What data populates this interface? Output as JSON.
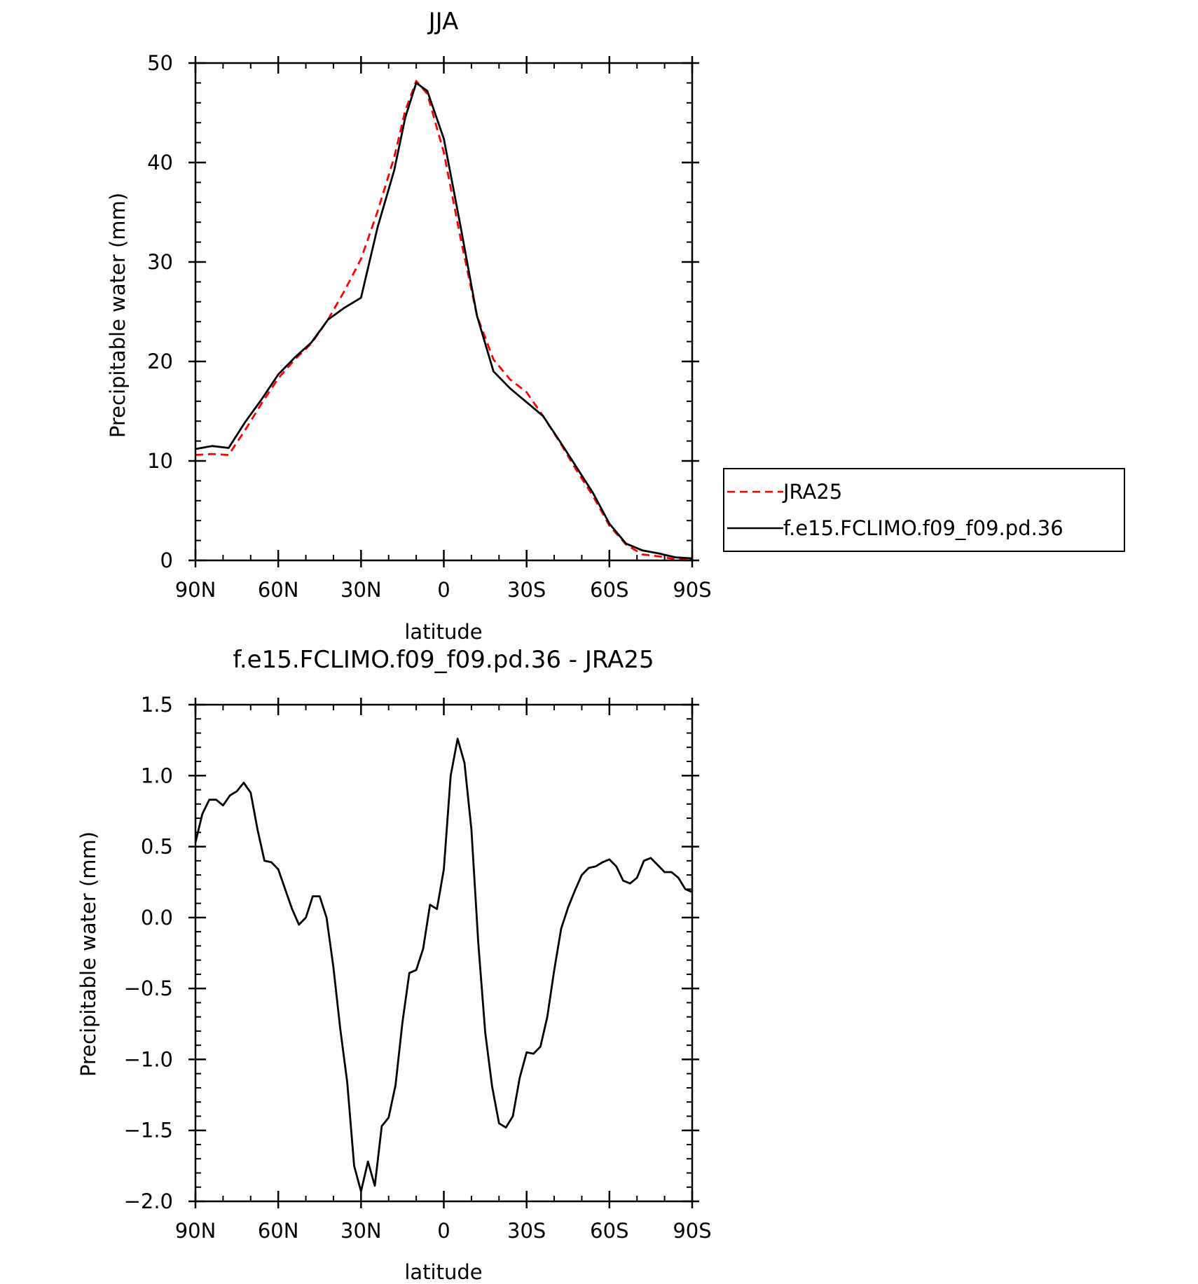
{
  "chart_data": [
    {
      "type": "line",
      "title": "JJA",
      "xlabel": "latitude",
      "ylabel": "Precipitable water (mm)",
      "xlim": [
        90,
        -90
      ],
      "ylim": [
        0,
        50
      ],
      "xticks": [
        90,
        60,
        30,
        0,
        -30,
        -60,
        -90
      ],
      "xtick_labels": [
        "90N",
        "60N",
        "30N",
        "0",
        "30S",
        "60S",
        "90S"
      ],
      "yticks": [
        0,
        10,
        20,
        30,
        40,
        50
      ],
      "ytick_labels": [
        "0",
        "10",
        "20",
        "30",
        "40",
        "50"
      ],
      "grid": false,
      "legend": "right, outside",
      "series": [
        {
          "name": "JRA25",
          "color": "#ff0000",
          "dash": "dashed",
          "x": [
            90,
            84,
            78,
            72,
            66,
            60,
            54,
            48,
            42,
            36,
            30,
            24,
            18,
            14,
            10,
            6,
            0,
            -6,
            -12,
            -18,
            -24,
            -30,
            -36,
            -42,
            -48,
            -54,
            -60,
            -66,
            -72,
            -78,
            -84,
            -90
          ],
          "y": [
            10.6,
            10.7,
            10.6,
            13.1,
            15.8,
            18.3,
            20.2,
            21.8,
            24.2,
            27.1,
            30.3,
            35.1,
            40.5,
            45.2,
            48.2,
            46.9,
            41.0,
            32.5,
            24.6,
            20.2,
            18.2,
            16.9,
            14.5,
            11.9,
            9.1,
            6.5,
            3.5,
            1.6,
            0.6,
            0.4,
            0.1,
            0.1
          ]
        },
        {
          "name": "f.e15.FCLIMO.f09_f09.pd.36",
          "color": "#000000",
          "dash": "solid",
          "x": [
            90,
            84,
            78,
            72,
            66,
            60,
            54,
            48,
            42,
            36,
            30,
            24,
            18,
            14,
            10,
            6,
            0,
            -6,
            -12,
            -18,
            -24,
            -30,
            -36,
            -42,
            -48,
            -54,
            -60,
            -66,
            -72,
            -78,
            -84,
            -90
          ],
          "y": [
            11.2,
            11.5,
            11.3,
            13.9,
            16.2,
            18.7,
            20.4,
            21.9,
            24.2,
            25.4,
            26.4,
            33.5,
            39.2,
            44.5,
            48.0,
            47.2,
            42.4,
            33.7,
            24.6,
            19.0,
            17.3,
            15.9,
            14.5,
            12.0,
            9.4,
            6.8,
            3.7,
            1.7,
            1.0,
            0.7,
            0.3,
            0.2
          ]
        }
      ]
    },
    {
      "type": "line",
      "title": "f.e15.FCLIMO.f09_f09.pd.36 - JRA25",
      "xlabel": "latitude",
      "ylabel": "Precipitable water (mm)",
      "xlim": [
        90,
        -90
      ],
      "ylim": [
        -2.0,
        1.5
      ],
      "xticks": [
        90,
        60,
        30,
        0,
        -30,
        -60,
        -90
      ],
      "xtick_labels": [
        "90N",
        "60N",
        "30N",
        "0",
        "30S",
        "60S",
        "90S"
      ],
      "yticks": [
        -2.0,
        -1.5,
        -1.0,
        -0.5,
        0.0,
        0.5,
        1.0,
        1.5
      ],
      "ytick_labels": [
        "−2.0",
        "−1.5",
        "−1.0",
        "−0.5",
        "0.0",
        "0.5",
        "1.0",
        "1.5"
      ],
      "grid": false,
      "series": [
        {
          "color": "#000000",
          "dash": "solid",
          "x": [
            90,
            87.5,
            85,
            82.5,
            80,
            77.5,
            75,
            72.5,
            70,
            67.5,
            65,
            62.5,
            60,
            57.5,
            55,
            52.5,
            50,
            47.5,
            45,
            42.5,
            40,
            37.5,
            35,
            32.5,
            30,
            27.5,
            25,
            22.5,
            20,
            17.5,
            15,
            12.5,
            10,
            7.5,
            5,
            2.5,
            0,
            -2.5,
            -5,
            -7.5,
            -10,
            -12.5,
            -15,
            -17.5,
            -20,
            -22.5,
            -25,
            -27.5,
            -30,
            -32.5,
            -35,
            -37.5,
            -40,
            -42.5,
            -45,
            -47.5,
            -50,
            -52.5,
            -55,
            -57.5,
            -60,
            -62.5,
            -65,
            -67.5,
            -70,
            -72.5,
            -75,
            -77.5,
            -80,
            -82.5,
            -85,
            -87.5,
            -90
          ],
          "y": [
            0.53,
            0.73,
            0.83,
            0.83,
            0.79,
            0.86,
            0.89,
            0.95,
            0.88,
            0.62,
            0.4,
            0.39,
            0.34,
            0.2,
            0.06,
            -0.05,
            0.0,
            0.15,
            0.15,
            0.0,
            -0.35,
            -0.79,
            -1.16,
            -1.75,
            -1.93,
            -1.72,
            -1.89,
            -1.47,
            -1.41,
            -1.18,
            -0.74,
            -0.39,
            -0.37,
            -0.22,
            0.09,
            0.06,
            0.34,
            1.0,
            1.26,
            1.09,
            0.62,
            -0.18,
            -0.81,
            -1.19,
            -1.45,
            -1.48,
            -1.4,
            -1.13,
            -0.95,
            -0.96,
            -0.91,
            -0.7,
            -0.37,
            -0.08,
            0.07,
            0.19,
            0.3,
            0.35,
            0.36,
            0.39,
            0.41,
            0.36,
            0.26,
            0.24,
            0.28,
            0.4,
            0.42,
            0.37,
            0.32,
            0.32,
            0.28,
            0.2,
            0.18
          ]
        }
      ]
    }
  ]
}
